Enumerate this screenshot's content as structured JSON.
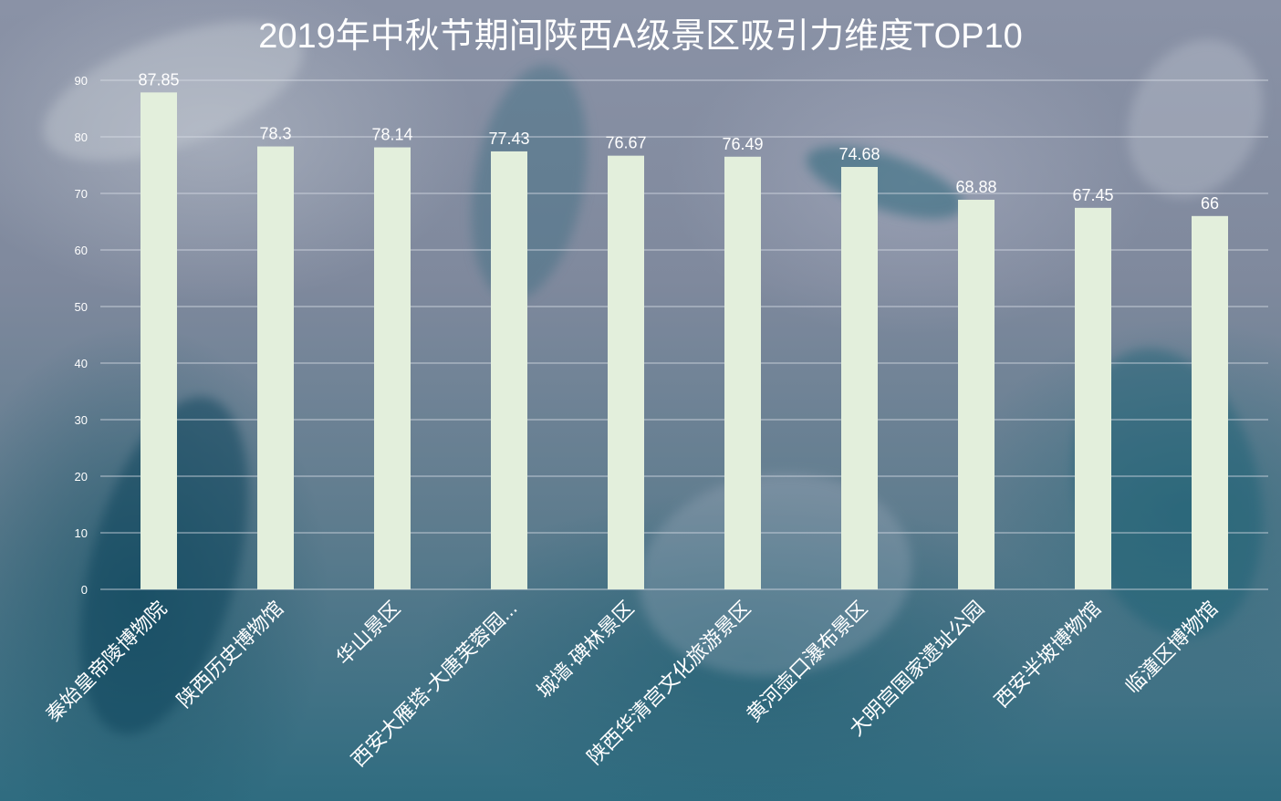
{
  "chart_data": {
    "type": "bar",
    "title": "2019年中秋节期间陕西A级景区吸引力维度TOP10",
    "categories": [
      "秦始皇帝陵博物院",
      "陕西历史博物馆",
      "华山景区",
      "西安大雁塔-大唐芙蓉园...",
      "城墙·碑林景区",
      "陕西华清宫文化旅游景区",
      "黄河壶口瀑布景区",
      "大明宫国家遗址公园",
      "西安半坡博物馆",
      "临潼区博物馆"
    ],
    "values": [
      87.85,
      78.3,
      78.14,
      77.43,
      76.67,
      76.49,
      74.68,
      68.88,
      67.45,
      66
    ],
    "value_labels": [
      "87.85",
      "78.3",
      "78.14",
      "77.43",
      "76.67",
      "76.49",
      "74.68",
      "68.88",
      "67.45",
      "66"
    ],
    "yticks": [
      "0",
      "10",
      "20",
      "30",
      "40",
      "50",
      "60",
      "70",
      "80",
      "90"
    ],
    "ylim": [
      0,
      90
    ],
    "xlabel": "",
    "ylabel": "",
    "grid": true,
    "legend": "none",
    "colors": {
      "bar": "#e3efdc",
      "grid": "#d8dde6",
      "text": "#ffffff"
    }
  }
}
